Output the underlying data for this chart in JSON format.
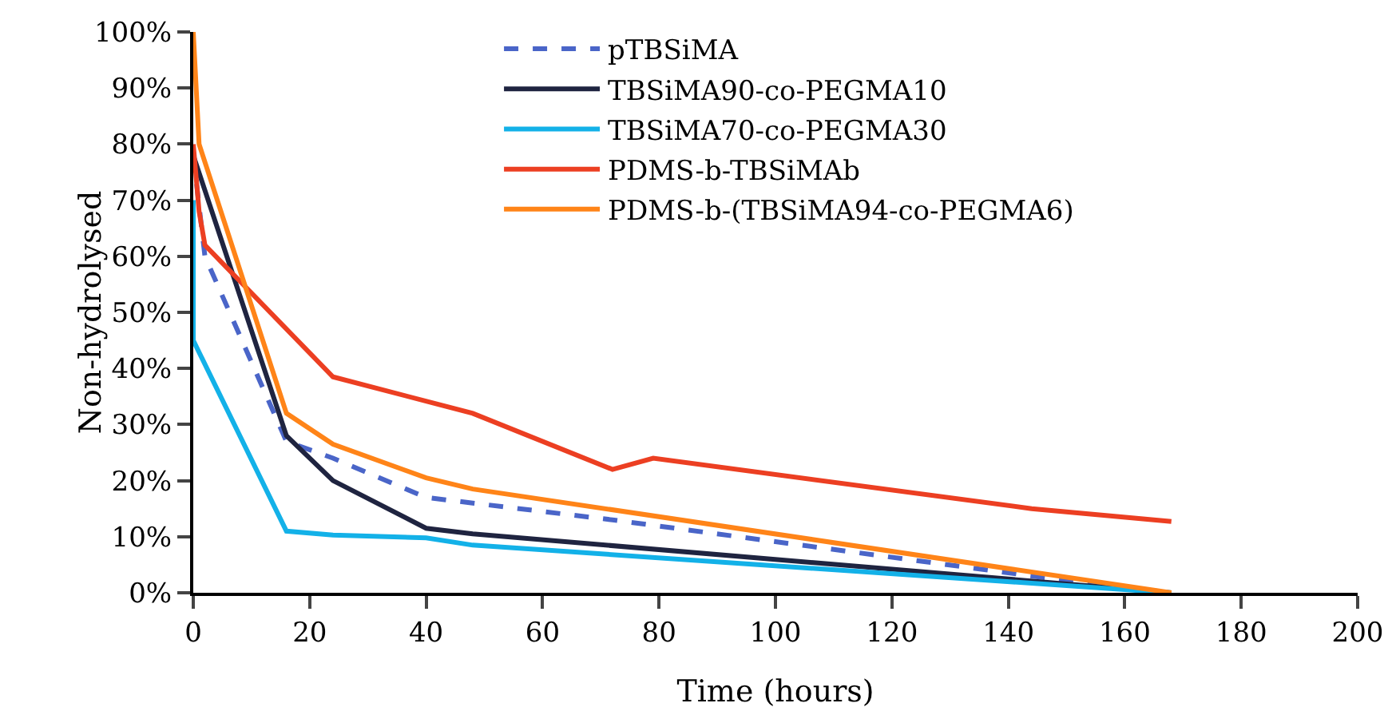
{
  "chart_data": {
    "type": "line",
    "xlabel": "Time (hours)",
    "ylabel": "Non-hydrolysed",
    "xlim": [
      0,
      200
    ],
    "xticks": [
      0,
      20,
      40,
      60,
      80,
      100,
      120,
      140,
      160,
      180,
      200
    ],
    "ylim": [
      0,
      100
    ],
    "yticks": [
      {
        "value": 0,
        "label": "0%"
      },
      {
        "value": 10,
        "label": "10%"
      },
      {
        "value": 20,
        "label": "20%"
      },
      {
        "value": 30,
        "label": "30%"
      },
      {
        "value": 40,
        "label": "40%"
      },
      {
        "value": 50,
        "label": "50%"
      },
      {
        "value": 60,
        "label": "60%"
      },
      {
        "value": 70,
        "label": "70%"
      },
      {
        "value": 80,
        "label": "80%"
      },
      {
        "value": 90,
        "label": "90%"
      },
      {
        "value": 100,
        "label": "100%"
      }
    ],
    "grid": false,
    "legend": "top",
    "marker": "none",
    "series": [
      {
        "name": "pTBSiMA",
        "color": "#4a65c8",
        "line_style": "dashed",
        "x": [
          0,
          2,
          16,
          24,
          40,
          48,
          72,
          144,
          168
        ],
        "values": [
          78,
          60,
          27,
          24,
          17,
          16,
          13,
          3,
          0
        ]
      },
      {
        "name": "TBSiMA90-co-PEGMA10",
        "color": "#1f2440",
        "x": [
          0,
          16,
          24,
          40,
          48,
          168
        ],
        "values": [
          78,
          28,
          20,
          11.5,
          10.5,
          0
        ]
      },
      {
        "name": "TBSiMA70-co-PEGMA30",
        "color": "#13b1e8",
        "x": [
          0,
          0,
          16,
          24,
          40,
          48,
          168
        ],
        "values": [
          70,
          45,
          11,
          10.3,
          9.8,
          8.5,
          0
        ]
      },
      {
        "name": "PDMS-b-TBSiMAb",
        "color": "#ec3f22",
        "x": [
          0,
          1,
          2,
          24,
          48,
          72,
          79,
          144,
          168
        ],
        "values": [
          80,
          68,
          62,
          38.5,
          32,
          22,
          24,
          15,
          12.7
        ]
      },
      {
        "name": "PDMS-b-(TBSiMA94-co-PEGMA6)",
        "color": "#ff8418",
        "x": [
          0,
          1,
          16,
          24,
          40,
          48,
          168
        ],
        "values": [
          100,
          80,
          32,
          26.5,
          20.5,
          18.5,
          0
        ]
      }
    ]
  }
}
